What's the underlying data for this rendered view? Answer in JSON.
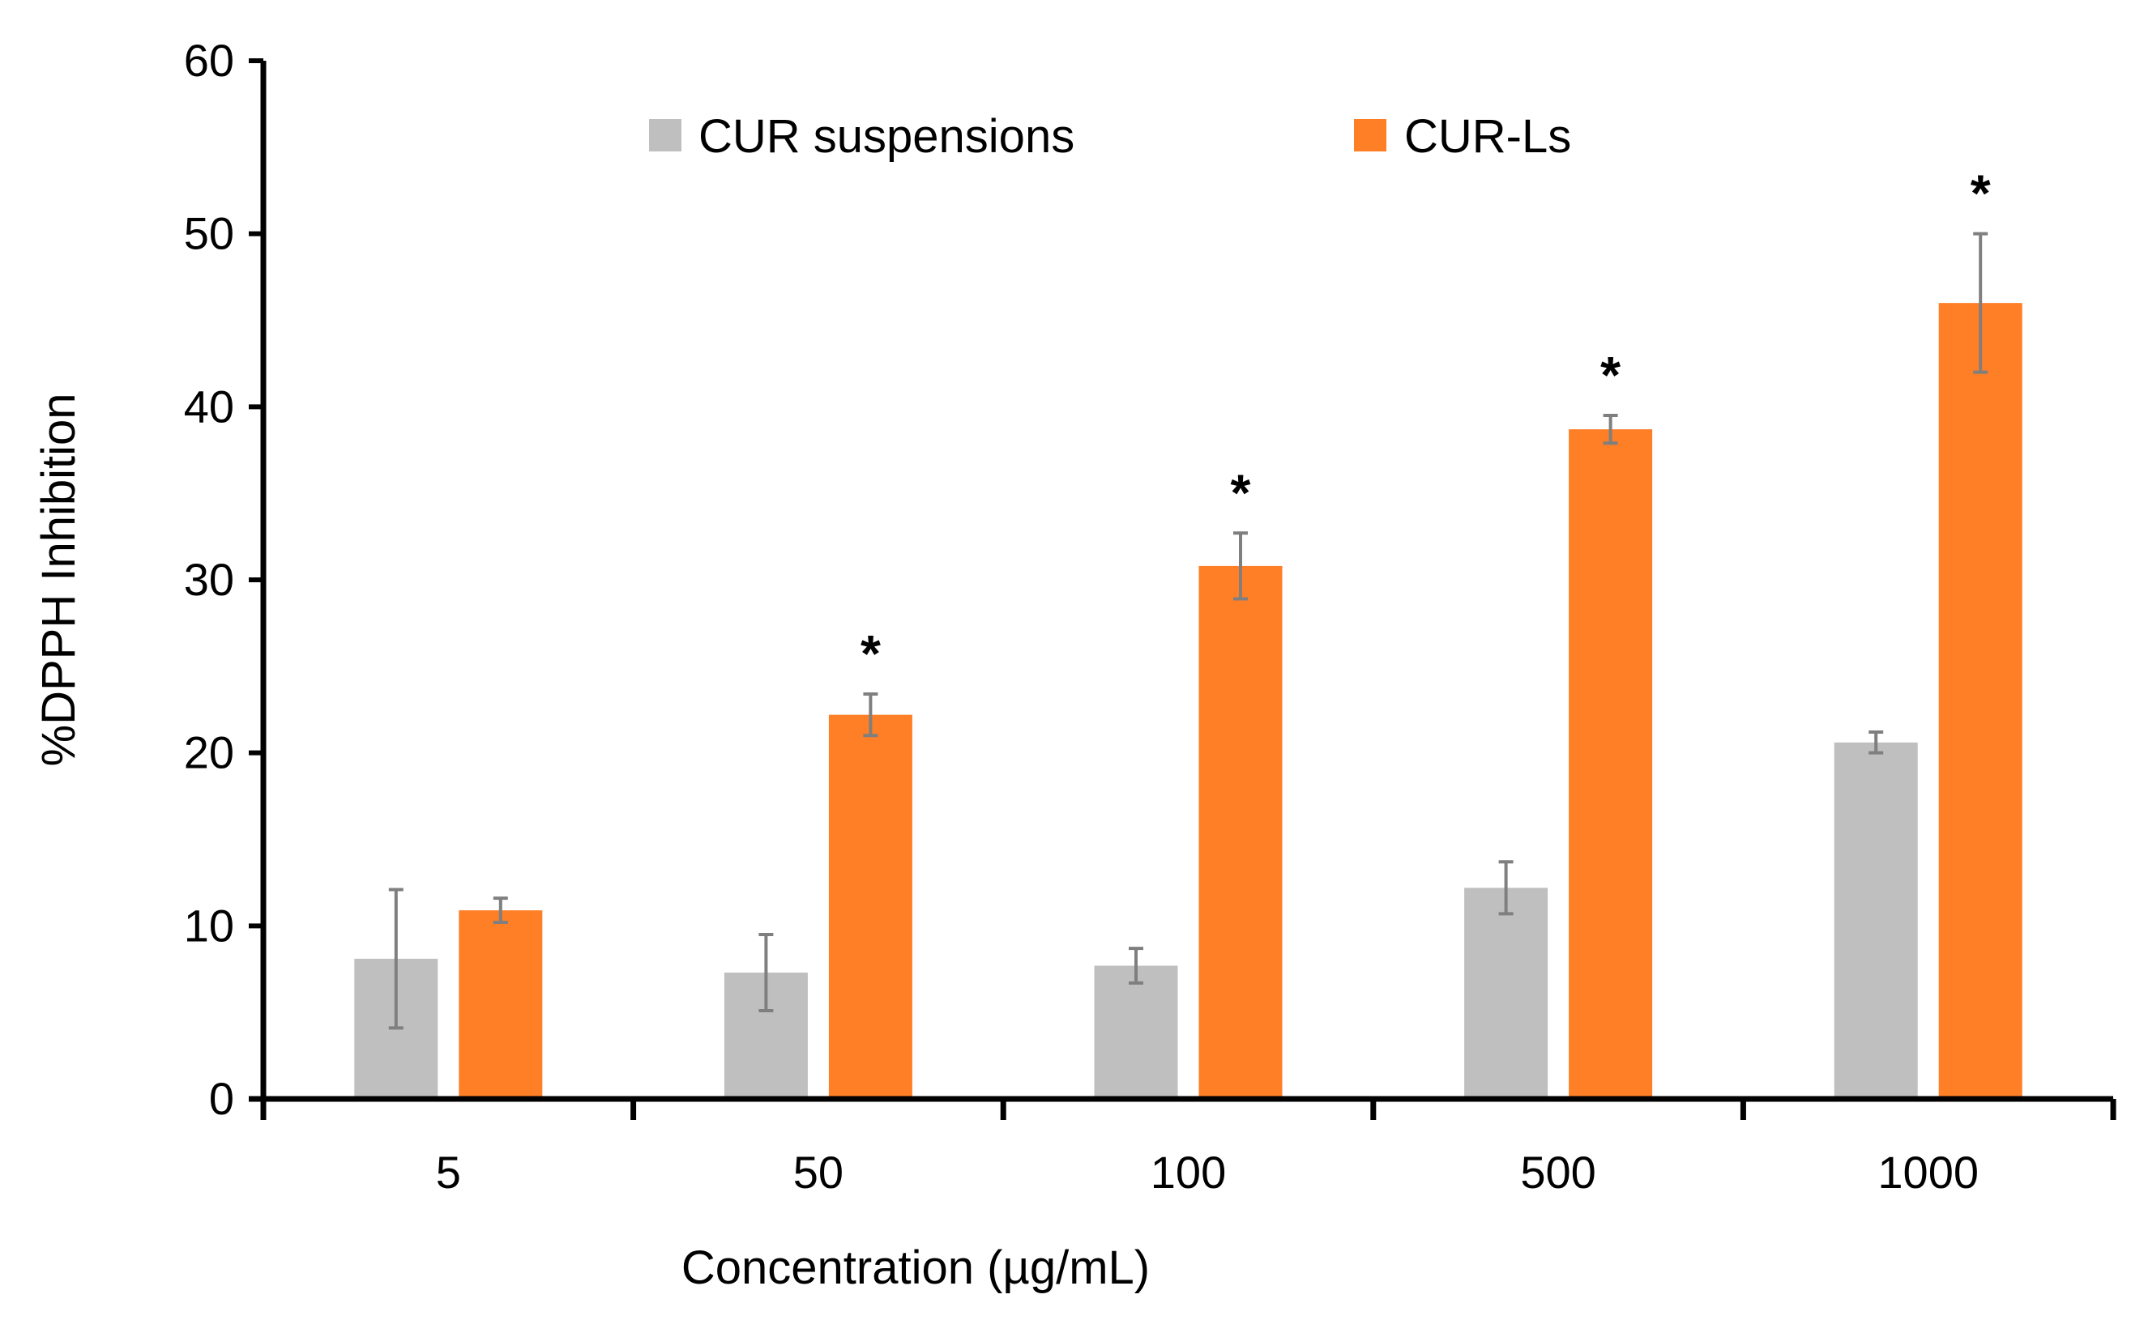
{
  "chart_data": {
    "type": "bar",
    "title": "",
    "xlabel": "Concentration (µg/mL)",
    "ylabel": "%DPPH Inhibition",
    "categories": [
      "5",
      "50",
      "100",
      "500",
      "1000"
    ],
    "ylim": [
      0,
      60
    ],
    "yticks": [
      "0",
      "10",
      "20",
      "30",
      "40",
      "50",
      "60"
    ],
    "series": [
      {
        "name": "CUR suspensions",
        "color": "#bfbfbf",
        "values": [
          8.1,
          7.3,
          7.7,
          12.2,
          20.6
        ],
        "errors": [
          4.0,
          2.2,
          1.0,
          1.5,
          0.6
        ]
      },
      {
        "name": "CUR-Ls",
        "color": "#ff7f27",
        "values": [
          10.9,
          22.2,
          30.8,
          38.7,
          46.0
        ],
        "errors": [
          0.7,
          1.2,
          1.9,
          0.8,
          4.0
        ]
      }
    ],
    "significance": [
      "",
      "*",
      "*",
      "*",
      "*"
    ],
    "legend": {
      "position": "top",
      "orientation": "horizontal"
    },
    "grid": false,
    "error_bar_color": "#7f7f7f"
  }
}
